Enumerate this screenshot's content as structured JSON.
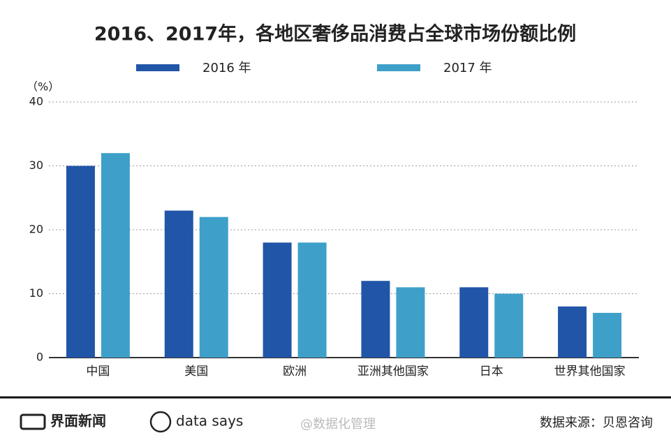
{
  "chart_data": {
    "type": "bar",
    "title": "2016、2017年，各地区奢侈品消费占全球市场份额比例",
    "y_label": "（%）",
    "categories": [
      "中国",
      "美国",
      "欧洲",
      "亚洲其他国家",
      "日本",
      "世界其他国家"
    ],
    "series": [
      {
        "name": "2016 年",
        "color": "#2155a8",
        "values": [
          30,
          23,
          18,
          12,
          11,
          8
        ]
      },
      {
        "name": "2017 年",
        "color": "#3ea0c9",
        "values": [
          32,
          22,
          18,
          11,
          10,
          7
        ]
      }
    ],
    "ylim": [
      0,
      40
    ],
    "yticks": [
      0,
      10,
      20,
      30,
      40
    ],
    "grid": true
  },
  "footer": {
    "brand": "界面新闻",
    "brand2": "data says",
    "source": "数据来源：贝恩咨询",
    "watermark": "@数据化管理"
  }
}
